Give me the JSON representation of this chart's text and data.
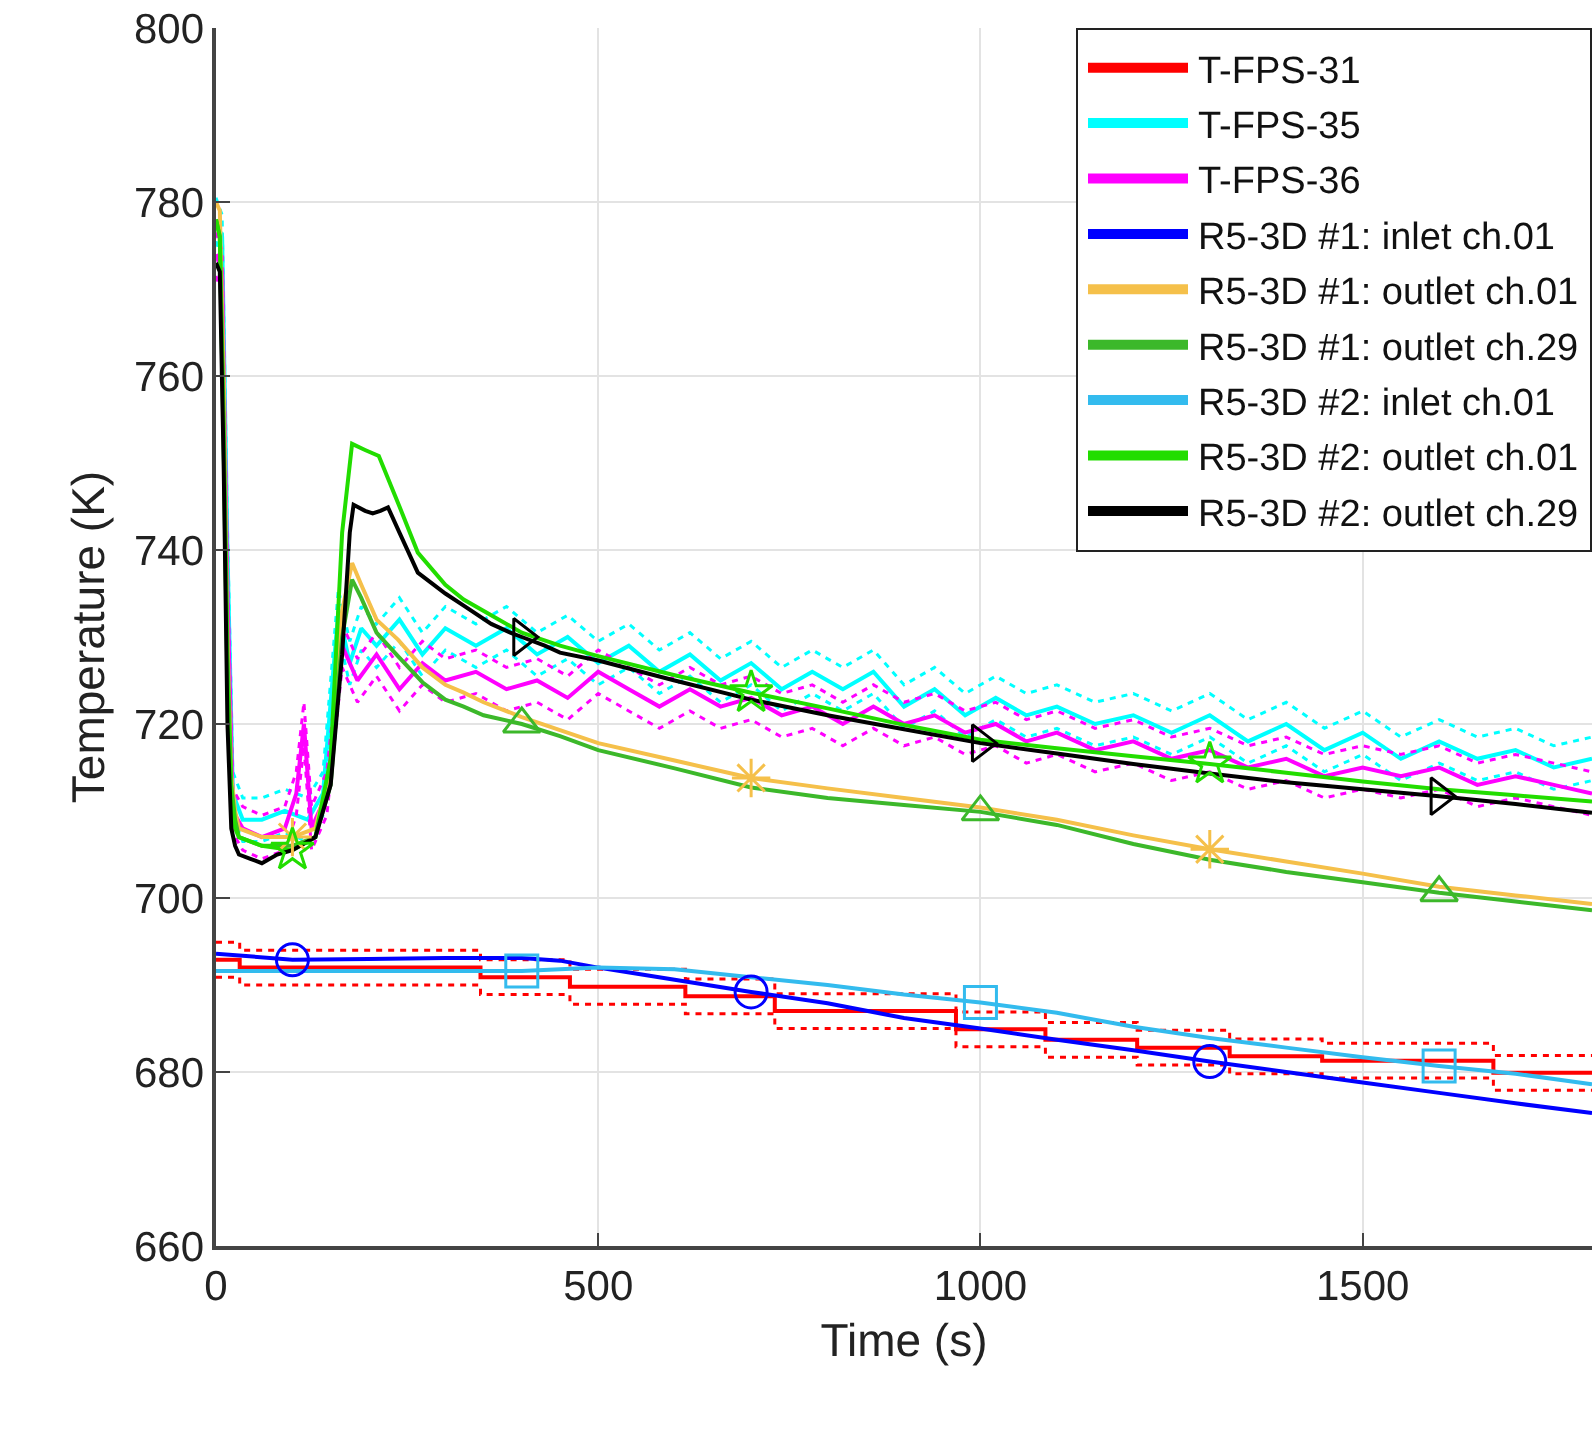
{
  "chart_data": {
    "type": "line",
    "xlabel": "Time (s)",
    "ylabel": "Temperature (K)",
    "xlim": [
      0,
      1800
    ],
    "xticks": [
      0,
      500,
      1000,
      1500
    ],
    "ylim": [
      660,
      800
    ],
    "yticks": [
      660,
      680,
      700,
      720,
      740,
      760,
      780,
      800
    ],
    "grid": true,
    "legend": "top right",
    "series": [
      {
        "name": "T-FPS-31",
        "type": "step",
        "color": "#ff0000",
        "marker": "none",
        "x": [
          0,
          31,
          346,
          463,
          614,
          731,
          968,
          1085,
          1205,
          1326,
          1447,
          1671,
          1800
        ],
        "values": [
          692.9,
          692.0,
          690.9,
          689.8,
          688.7,
          687.0,
          684.9,
          683.7,
          682.8,
          681.8,
          681.3,
          679.9,
          679.9
        ]
      },
      {
        "type": "step",
        "color": "#ff0000",
        "marker": "none",
        "line_style": "dotted",
        "x": [
          0,
          31,
          346,
          463,
          614,
          731,
          968,
          1085,
          1205,
          1326,
          1447,
          1671,
          1800
        ],
        "values": [
          690.9,
          690.0,
          688.9,
          687.8,
          686.7,
          685.0,
          682.9,
          681.7,
          680.8,
          679.8,
          679.3,
          677.9,
          677.9
        ]
      },
      {
        "type": "step",
        "color": "#ff0000",
        "marker": "none",
        "line_style": "dotted",
        "x": [
          0,
          31,
          346,
          463,
          614,
          731,
          968,
          1085,
          1205,
          1326,
          1447,
          1671,
          1800
        ],
        "values": [
          694.9,
          694.0,
          692.9,
          691.8,
          690.7,
          689.0,
          686.9,
          685.7,
          684.8,
          683.8,
          683.3,
          681.9,
          681.9
        ]
      },
      {
        "name": "T-FPS-35",
        "color": "#00ffff",
        "marker": "none",
        "x": [
          0,
          8,
          15,
          22,
          35,
          60,
          90,
          120,
          140,
          160,
          175,
          190,
          210,
          240,
          270,
          300,
          340,
          380,
          420,
          460,
          500,
          540,
          580,
          620,
          660,
          700,
          740,
          780,
          820,
          860,
          900,
          940,
          980,
          1020,
          1060,
          1100,
          1150,
          1200,
          1250,
          1300,
          1350,
          1400,
          1450,
          1500,
          1550,
          1600,
          1650,
          1700,
          1750,
          1800
        ],
        "values": [
          778,
          776,
          740,
          712,
          709,
          709,
          710,
          709,
          712,
          733,
          727,
          731,
          729,
          732,
          728,
          731,
          729,
          731,
          728,
          730,
          727,
          729,
          726,
          728,
          725,
          727,
          724,
          726,
          724,
          726,
          722,
          724,
          721,
          723,
          721,
          722,
          720,
          721,
          719,
          721,
          718,
          720,
          717,
          719,
          716,
          718,
          716,
          717,
          715,
          716
        ]
      },
      {
        "color": "#00ffff",
        "marker": "none",
        "line_style": "dotted",
        "x": [
          0,
          8,
          15,
          22,
          35,
          60,
          90,
          120,
          140,
          160,
          175,
          190,
          210,
          240,
          270,
          300,
          340,
          380,
          420,
          460,
          500,
          540,
          580,
          620,
          660,
          700,
          740,
          780,
          820,
          860,
          900,
          940,
          980,
          1020,
          1060,
          1100,
          1150,
          1200,
          1250,
          1300,
          1350,
          1400,
          1450,
          1500,
          1550,
          1600,
          1650,
          1700,
          1750,
          1800
        ],
        "values": [
          775.5,
          773.5,
          737.5,
          709.5,
          706.5,
          706.5,
          707.5,
          706.5,
          709.5,
          730.5,
          724.5,
          728.5,
          726.5,
          729.5,
          725.5,
          728.5,
          726.5,
          728.5,
          725.5,
          727.5,
          724.5,
          726.5,
          723.5,
          725.5,
          722.5,
          724.5,
          721.5,
          723.5,
          721.5,
          723.5,
          719.5,
          721.5,
          718.5,
          720.5,
          718.5,
          719.5,
          717.5,
          718.5,
          716.5,
          718.5,
          715.5,
          717.5,
          714.5,
          716.5,
          713.5,
          715.5,
          713.5,
          714.5,
          712.5,
          713.5
        ]
      },
      {
        "color": "#00ffff",
        "marker": "none",
        "line_style": "dotted",
        "x": [
          0,
          8,
          15,
          22,
          35,
          60,
          90,
          120,
          140,
          160,
          175,
          190,
          210,
          240,
          270,
          300,
          340,
          380,
          420,
          460,
          500,
          540,
          580,
          620,
          660,
          700,
          740,
          780,
          820,
          860,
          900,
          940,
          980,
          1020,
          1060,
          1100,
          1150,
          1200,
          1250,
          1300,
          1350,
          1400,
          1450,
          1500,
          1550,
          1600,
          1650,
          1700,
          1750,
          1800
        ],
        "values": [
          780.5,
          778.5,
          742.5,
          714.5,
          711.5,
          711.5,
          712.5,
          711.5,
          714.5,
          735.5,
          729.5,
          733.5,
          731.5,
          734.5,
          730.5,
          733.5,
          731.5,
          733.5,
          730.5,
          732.5,
          729.5,
          731.5,
          728.5,
          730.5,
          727.5,
          729.5,
          726.5,
          728.5,
          726.5,
          728.5,
          724.5,
          726.5,
          723.5,
          725.5,
          723.5,
          724.5,
          722.5,
          723.5,
          721.5,
          723.5,
          720.5,
          722.5,
          719.5,
          721.5,
          718.5,
          720.5,
          718.5,
          719.5,
          717.5,
          718.5
        ]
      },
      {
        "name": "T-FPS-36",
        "color": "#ff00ff",
        "marker": "none",
        "x": [
          0,
          8,
          15,
          22,
          35,
          60,
          90,
          105,
          115,
          125,
          145,
          165,
          185,
          210,
          240,
          270,
          300,
          340,
          380,
          420,
          460,
          500,
          540,
          580,
          620,
          660,
          700,
          740,
          780,
          820,
          860,
          900,
          940,
          980,
          1020,
          1060,
          1100,
          1150,
          1200,
          1250,
          1300,
          1350,
          1400,
          1450,
          1500,
          1550,
          1600,
          1650,
          1700,
          1750,
          1800
        ],
        "values": [
          774,
          772,
          735,
          710,
          708,
          707,
          708,
          712,
          720,
          708,
          712,
          729,
          725,
          728,
          724,
          727,
          725,
          726,
          724,
          725,
          723,
          726,
          724,
          722,
          724,
          722,
          723,
          721,
          722,
          720,
          722,
          720,
          721,
          719,
          720,
          718,
          719,
          717,
          718,
          716,
          717,
          715,
          716,
          714,
          715,
          714,
          715,
          713,
          714,
          713,
          712
        ]
      },
      {
        "color": "#ff00ff",
        "marker": "none",
        "line_style": "dotted",
        "x": [
          0,
          8,
          15,
          22,
          35,
          60,
          90,
          105,
          115,
          125,
          145,
          165,
          185,
          210,
          240,
          270,
          300,
          340,
          380,
          420,
          460,
          500,
          540,
          580,
          620,
          660,
          700,
          740,
          780,
          820,
          860,
          900,
          940,
          980,
          1020,
          1060,
          1100,
          1150,
          1200,
          1250,
          1300,
          1350,
          1400,
          1450,
          1500,
          1550,
          1600,
          1650,
          1700,
          1750,
          1800
        ],
        "values": [
          771.5,
          769.5,
          732.5,
          707.5,
          705.5,
          704.5,
          705.5,
          709.5,
          717.5,
          705.5,
          709.5,
          726.5,
          722.5,
          725.5,
          721.5,
          724.5,
          722.5,
          723.5,
          721.5,
          722.5,
          720.5,
          723.5,
          721.5,
          719.5,
          721.5,
          719.5,
          720.5,
          718.5,
          719.5,
          717.5,
          719.5,
          717.5,
          718.5,
          716.5,
          717.5,
          715.5,
          716.5,
          714.5,
          715.5,
          713.5,
          714.5,
          712.5,
          713.5,
          711.5,
          712.5,
          711.5,
          712.5,
          710.5,
          711.5,
          710.5,
          709.5
        ]
      },
      {
        "color": "#ff00ff",
        "marker": "none",
        "line_style": "dotted",
        "x": [
          0,
          8,
          15,
          22,
          35,
          60,
          90,
          105,
          115,
          125,
          145,
          165,
          185,
          210,
          240,
          270,
          300,
          340,
          380,
          420,
          460,
          500,
          540,
          580,
          620,
          660,
          700,
          740,
          780,
          820,
          860,
          900,
          940,
          980,
          1020,
          1060,
          1100,
          1150,
          1200,
          1250,
          1300,
          1350,
          1400,
          1450,
          1500,
          1550,
          1600,
          1650,
          1700,
          1750,
          1800
        ],
        "values": [
          776.5,
          774.5,
          737.5,
          712.5,
          710.5,
          709.5,
          710.5,
          714.5,
          722.5,
          710.5,
          714.5,
          731.5,
          727.5,
          730.5,
          726.5,
          729.5,
          727.5,
          728.5,
          726.5,
          727.5,
          725.5,
          728.5,
          726.5,
          724.5,
          726.5,
          724.5,
          725.5,
          723.5,
          724.5,
          722.5,
          724.5,
          722.5,
          723.5,
          721.5,
          722.5,
          720.5,
          721.5,
          719.5,
          720.5,
          718.5,
          719.5,
          717.5,
          718.5,
          716.5,
          717.5,
          716.5,
          717.5,
          715.5,
          716.5,
          715.5,
          714.5
        ]
      },
      {
        "name": "R5-3D #1: inlet ch.01",
        "color": "#0000ff",
        "x": [
          0,
          100,
          200,
          300,
          400,
          450,
          500,
          600,
          700,
          800,
          900,
          1000,
          1100,
          1200,
          1300,
          1400,
          1500,
          1600,
          1700,
          1800
        ],
        "values": [
          693.6,
          692.9,
          693.0,
          693.1,
          693.1,
          692.8,
          692.0,
          690.6,
          689.2,
          687.9,
          686.2,
          685.0,
          683.7,
          682.5,
          681.2,
          680.0,
          678.8,
          677.6,
          676.4,
          675.3
        ]
      },
      {
        "name": "R5-3D #1: outlet ch.01",
        "color": "#f5c04a",
        "x": [
          0,
          5,
          10,
          15,
          20,
          25,
          30,
          60,
          100,
          130,
          150,
          165,
          178,
          190,
          210,
          238,
          270,
          300,
          324,
          350,
          400,
          450,
          500,
          600,
          700,
          800,
          900,
          1000,
          1100,
          1200,
          1300,
          1400,
          1500,
          1600,
          1700,
          1800
        ],
        "values": [
          780,
          779,
          760,
          730,
          714,
          710,
          708,
          707,
          707,
          708,
          715,
          733,
          738.5,
          736,
          732,
          729.7,
          726.5,
          724.5,
          723.6,
          722.5,
          720.8,
          719.3,
          717.8,
          715.8,
          713.8,
          712.6,
          711.5,
          710.4,
          709.0,
          707.2,
          705.6,
          704.2,
          702.8,
          701.3,
          700.3,
          699.3
        ]
      },
      {
        "name": "R5-3D #1: outlet ch.29",
        "color": "#3cb82a",
        "x": [
          0,
          5,
          10,
          15,
          20,
          25,
          30,
          60,
          100,
          130,
          150,
          165,
          178,
          190,
          210,
          238,
          270,
          300,
          324,
          350,
          400,
          450,
          500,
          600,
          700,
          800,
          900,
          1000,
          1100,
          1200,
          1300,
          1400,
          1500,
          1600,
          1700,
          1800
        ],
        "values": [
          778,
          776,
          755,
          728,
          713,
          709,
          707,
          706,
          706,
          707,
          713,
          730,
          736.6,
          734.5,
          730.5,
          727.8,
          724.8,
          722.8,
          722.0,
          721.0,
          720.0,
          718.6,
          717.0,
          714.9,
          712.7,
          711.5,
          710.7,
          709.9,
          708.4,
          706.2,
          704.4,
          703.0,
          701.8,
          700.6,
          699.6,
          698.6
        ]
      },
      {
        "name": "R5-3D #2: inlet ch.01",
        "color": "#33bbee",
        "x": [
          0,
          100,
          200,
          300,
          400,
          450,
          500,
          600,
          700,
          800,
          900,
          1000,
          1100,
          1200,
          1300,
          1400,
          1500,
          1600,
          1700,
          1800
        ],
        "values": [
          691.6,
          691.6,
          691.6,
          691.6,
          691.6,
          691.8,
          692.0,
          691.8,
          690.9,
          690.0,
          688.9,
          688.0,
          686.8,
          685.2,
          683.9,
          682.8,
          681.7,
          680.7,
          679.8,
          678.6
        ]
      },
      {
        "name": "R5-3D #2: outlet ch.01",
        "color": "#22dd00",
        "x": [
          0,
          5,
          10,
          15,
          20,
          25,
          30,
          60,
          100,
          130,
          150,
          165,
          178,
          195,
          213,
          240,
          264,
          300,
          324,
          360,
          400,
          450,
          500,
          600,
          700,
          800,
          900,
          1000,
          1100,
          1200,
          1300,
          1400,
          1500,
          1600,
          1700,
          1800
        ],
        "values": [
          778,
          776,
          752,
          725,
          712,
          708,
          707,
          706,
          705.5,
          707,
          716,
          742,
          752.2,
          751.5,
          750.8,
          745,
          739.7,
          736,
          734.3,
          732.5,
          730.5,
          729,
          727.8,
          725.6,
          723.6,
          721.8,
          719.9,
          718.2,
          717.2,
          716.3,
          715.4,
          714.4,
          713.4,
          712.5,
          711.8,
          711.1
        ]
      },
      {
        "name": "R5-3D #2: outlet ch.29",
        "color": "#000000",
        "x": [
          0,
          5,
          10,
          15,
          20,
          25,
          30,
          45,
          60,
          80,
          100,
          130,
          150,
          165,
          175,
          180,
          195,
          205,
          215,
          225,
          240,
          264,
          300,
          324,
          360,
          385,
          400,
          430,
          450,
          500,
          600,
          700,
          800,
          900,
          1000,
          1100,
          1200,
          1300,
          1400,
          1500,
          1600,
          1700,
          1800
        ],
        "values": [
          773,
          772,
          750,
          720,
          708,
          706,
          705,
          704.5,
          704,
          705,
          705.5,
          707,
          713,
          728,
          742,
          745.2,
          744.5,
          744.2,
          744.5,
          744.9,
          742,
          737.4,
          735,
          733.6,
          731.5,
          730.5,
          730.0,
          729,
          728.2,
          727.3,
          725.0,
          722.8,
          721.0,
          719.4,
          717.8,
          716.6,
          715.4,
          714.3,
          713.3,
          712.5,
          711.7,
          710.8,
          709.8
        ]
      },
      {
        "type": "scatter",
        "color": "#0000ff",
        "marker": "circle",
        "x": [
          100,
          700,
          1300
        ],
        "values": [
          692.9,
          689.2,
          681.2
        ]
      },
      {
        "type": "scatter",
        "color": "#f5c04a",
        "marker": "cross",
        "x": [
          100,
          700,
          1300
        ],
        "values": [
          707,
          713.8,
          705.6
        ]
      },
      {
        "type": "scatter",
        "color": "#3cb82a",
        "marker": "triangle",
        "x": [
          400,
          1000,
          1600
        ],
        "values": [
          720.0,
          709.9,
          700.6
        ]
      },
      {
        "type": "scatter",
        "color": "#33bbee",
        "marker": "square",
        "x": [
          400,
          1000,
          1600
        ],
        "values": [
          691.6,
          688.0,
          680.7
        ]
      },
      {
        "type": "scatter",
        "color": "#22dd00",
        "marker": "star",
        "x": [
          100,
          700,
          1300
        ],
        "values": [
          705.5,
          723.6,
          715.4
        ]
      },
      {
        "type": "scatter",
        "color": "#000000",
        "marker": "triangle-right",
        "x": [
          400,
          1000,
          1600
        ],
        "values": [
          730.0,
          717.8,
          711.7
        ]
      }
    ]
  }
}
